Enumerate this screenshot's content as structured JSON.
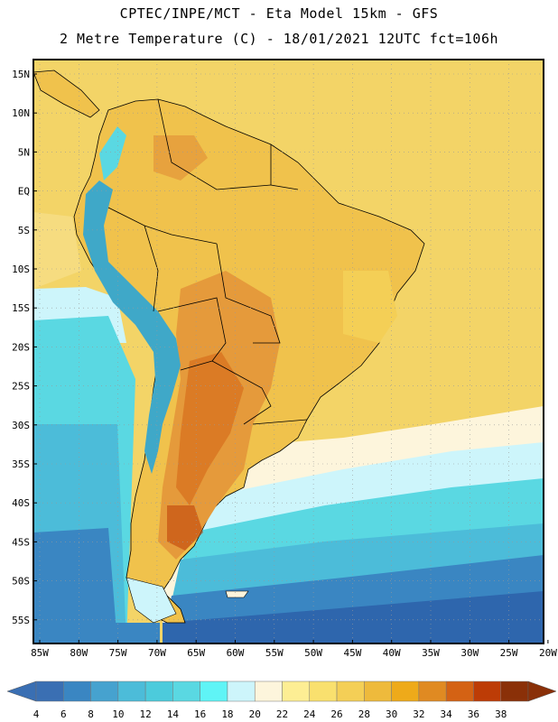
{
  "header": {
    "line1": "CPTEC/INPE/MCT -  Eta Model 15km - GFS",
    "line2": "2 Metre Temperature (C) - 18/01/2021 12UTC fct=106h"
  },
  "axes": {
    "lat_labels": [
      "15N",
      "10N",
      "5N",
      "EQ",
      "5S",
      "10S",
      "15S",
      "20S",
      "25S",
      "30S",
      "35S",
      "40S",
      "45S",
      "50S",
      "55S"
    ],
    "lon_labels": [
      "85W",
      "80W",
      "75W",
      "70W",
      "65W",
      "60W",
      "55W",
      "50W",
      "45W",
      "40W",
      "35W",
      "30W",
      "25W",
      "20W"
    ]
  },
  "legend": {
    "values": [
      "4",
      "6",
      "8",
      "10",
      "12",
      "14",
      "16",
      "18",
      "20",
      "22",
      "24",
      "26",
      "28",
      "30",
      "32",
      "34",
      "36",
      "38"
    ],
    "colors": [
      "#3a6fb3",
      "#3a86c2",
      "#46a2cf",
      "#4cbcd9",
      "#4ccbdc",
      "#5ad8e2",
      "#5ff4f6",
      "#cdf5fb",
      "#fdf5dc",
      "#fdee94",
      "#f9e06e",
      "#f4cf56",
      "#eeba3c",
      "#eeaa1a",
      "#e08a22",
      "#d46214",
      "#bd3c06",
      "#8a3008"
    ],
    "low_color": "#3a6fb3",
    "high_color": "#8a3008"
  },
  "colors": {
    "land_hot": "#e59a3b",
    "land_warm": "#f0c24c",
    "andes": "#3fa8c8",
    "ocean_cold": "#2b5f9e",
    "ocean_cool": "#4cc0d6",
    "ocean_warm": "#f2d66a",
    "border": "#000000"
  }
}
